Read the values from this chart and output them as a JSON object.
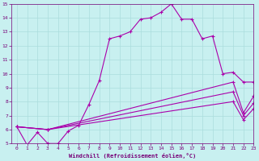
{
  "xlabel": "Windchill (Refroidissement éolien,°C)",
  "bg_color": "#c8f0f0",
  "grid_color": "#aadddd",
  "line_color": "#aa00aa",
  "xlim": [
    -0.5,
    23
  ],
  "ylim": [
    5,
    15
  ],
  "xticks": [
    0,
    1,
    2,
    3,
    4,
    5,
    6,
    7,
    8,
    9,
    10,
    11,
    12,
    13,
    14,
    15,
    16,
    17,
    18,
    19,
    20,
    21,
    22,
    23
  ],
  "yticks": [
    5,
    6,
    7,
    8,
    9,
    10,
    11,
    12,
    13,
    14,
    15
  ],
  "series": [
    {
      "x": [
        0,
        1,
        2,
        3,
        4,
        5,
        6,
        7,
        8,
        9,
        10,
        11,
        12,
        13,
        14,
        15,
        16,
        17,
        18,
        19,
        20,
        21,
        22,
        23
      ],
      "y": [
        6.2,
        4.9,
        5.8,
        5.0,
        5.0,
        5.9,
        6.3,
        7.8,
        9.5,
        12.5,
        12.7,
        13.0,
        13.9,
        14.0,
        14.4,
        15.0,
        13.9,
        13.9,
        12.5,
        12.7,
        10.0,
        10.1,
        9.4,
        9.4
      ]
    },
    {
      "x": [
        0,
        3,
        21,
        22,
        23
      ],
      "y": [
        6.2,
        6.0,
        9.4,
        7.2,
        8.4
      ]
    },
    {
      "x": [
        0,
        3,
        21,
        22,
        23
      ],
      "y": [
        6.2,
        6.0,
        8.7,
        7.0,
        7.9
      ]
    },
    {
      "x": [
        0,
        3,
        21,
        22,
        23
      ],
      "y": [
        6.2,
        6.0,
        8.0,
        6.7,
        7.5
      ]
    }
  ]
}
